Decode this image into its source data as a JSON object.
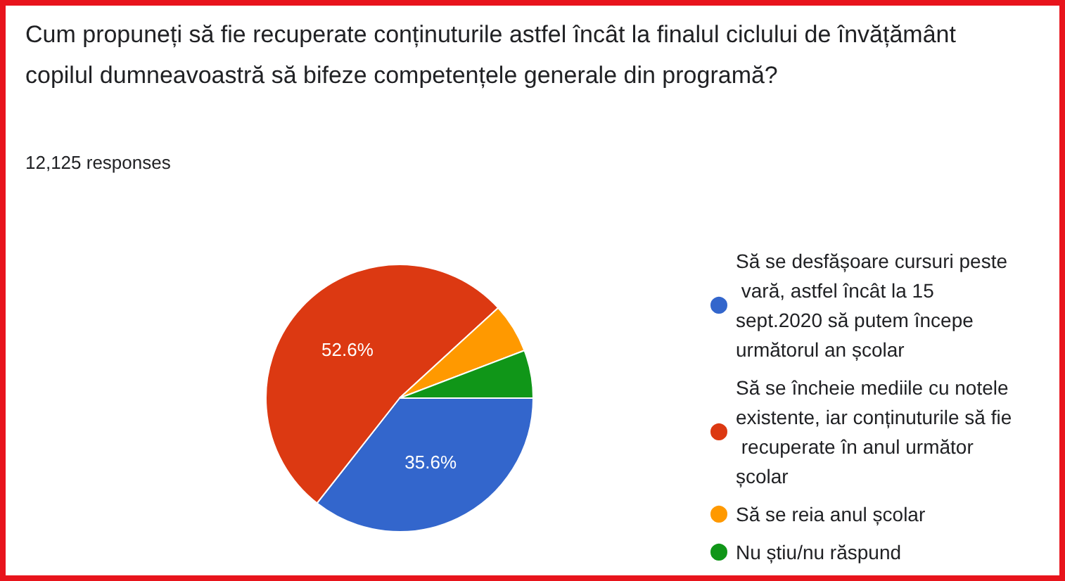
{
  "chart_data": {
    "type": "pie",
    "title": "Cum propuneți să fie recuperate conținuturile astfel încât la finalul ciclului de învățământ copilul dumneavoastră să bifeze competențele generale din programă?",
    "subtitle": "12,125 responses",
    "categories": [
      "Să se desfășoare cursuri peste vară, astfel încât la 15 sept.2020 să putem începe următorul an școlar",
      "Să se încheie mediile cu notele existente, iar conținuturile să fie recuperate în anul următor școlar",
      "Să se reia anul școlar",
      "Nu știu/nu răspund"
    ],
    "values": [
      35.6,
      52.6,
      6.0,
      5.8
    ],
    "colors": [
      "#3366cc",
      "#dc3912",
      "#ff9900",
      "#109618"
    ],
    "value_labels": [
      "35.6%",
      "52.6%",
      null,
      null
    ],
    "legend": "right"
  }
}
